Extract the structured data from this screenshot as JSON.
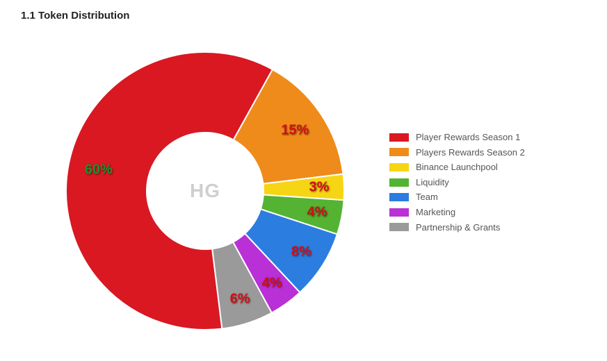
{
  "title": "1.1 Token Distribution",
  "center_text": "HG",
  "chart": {
    "type": "donut",
    "inner_radius_ratio": 0.42,
    "outer_radius": 200,
    "background_color": "#ffffff",
    "label_fontsize": 20,
    "label_text_color": "#d40f16",
    "label_shadow": "1px 1px 2px rgba(0,0,0,0.5)",
    "start_angle_deg": 173,
    "slices": [
      {
        "label": "Player Rewards Season 1",
        "value": 60,
        "display": "60%",
        "color": "#d91822"
      },
      {
        "label": "Players Rewards Season 2",
        "value": 15,
        "display": "15%",
        "color": "#ef8b1a"
      },
      {
        "label": "Binance Launchpool",
        "value": 3,
        "display": "3%",
        "color": "#f6d514"
      },
      {
        "label": "Liquidity",
        "value": 4,
        "display": "4%",
        "color": "#54b332"
      },
      {
        "label": "Team",
        "value": 8,
        "display": "8%",
        "color": "#2b7de0"
      },
      {
        "label": "Marketing",
        "value": 4,
        "display": "4%",
        "color": "#b830d6"
      },
      {
        "label": "Partnership & Grants",
        "value": 6,
        "display": "6%",
        "color": "#9a9a9a"
      }
    ]
  },
  "legend": {
    "fontsize": 13,
    "text_color": "#555555",
    "swatch_width": 28,
    "swatch_height": 12
  }
}
